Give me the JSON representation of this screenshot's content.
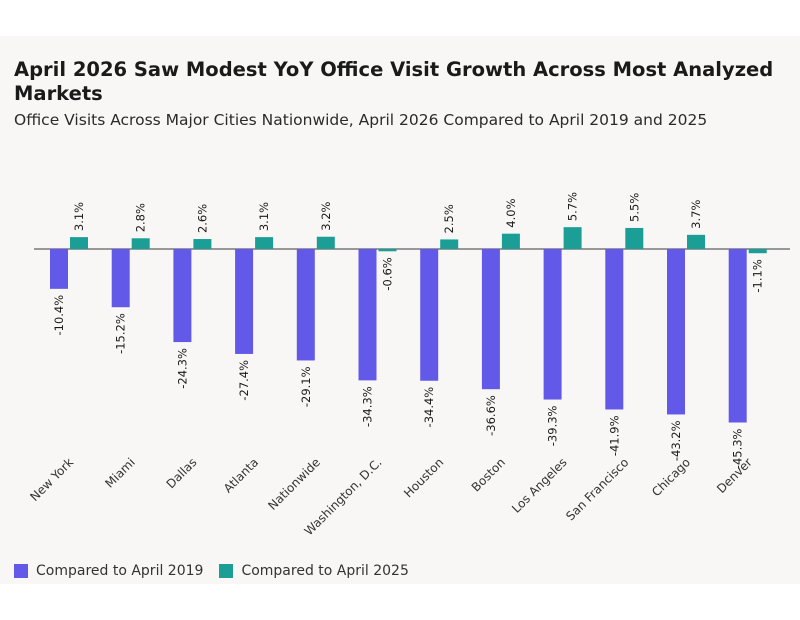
{
  "chart_data": {
    "type": "bar",
    "title": "April 2026 Saw Modest YoY Office Visit Growth Across Most Analyzed Markets",
    "subtitle": "Office Visits Across Major Cities Nationwide, April 2026 Compared to April 2019 and 2025",
    "categories": [
      "New York",
      "Miami",
      "Dallas",
      "Atlanta",
      "Nationwide",
      "Washington, D.C.",
      "Houston",
      "Boston",
      "Los Angeles",
      "San Francisco",
      "Chicago",
      "Denver"
    ],
    "series": [
      {
        "name": "Compared to April 2019",
        "color": "#6259e8",
        "values": [
          -10.4,
          -15.2,
          -24.3,
          -27.4,
          -29.1,
          -34.3,
          -34.4,
          -36.6,
          -39.3,
          -41.9,
          -43.2,
          -45.3
        ],
        "labels": [
          "-10.4%",
          "-15.2%",
          "-24.3%",
          "-27.4%",
          "-29.1%",
          "-34.3%",
          "-34.4%",
          "-36.6%",
          "-39.3%",
          "-41.9%",
          "-43.2%",
          "-45.3%"
        ]
      },
      {
        "name": "Compared to April 2025",
        "color": "#1a9e96",
        "values": [
          3.1,
          2.8,
          2.6,
          3.1,
          3.2,
          -0.6,
          2.5,
          4.0,
          5.7,
          5.5,
          3.7,
          -1.1
        ],
        "labels": [
          "3.1%",
          "2.8%",
          "2.6%",
          "3.1%",
          "3.2%",
          "-0.6%",
          "2.5%",
          "4.0%",
          "5.7%",
          "5.5%",
          "3.7%",
          "-1.1%"
        ]
      }
    ],
    "legend": "bottom-left",
    "grid": false
  }
}
